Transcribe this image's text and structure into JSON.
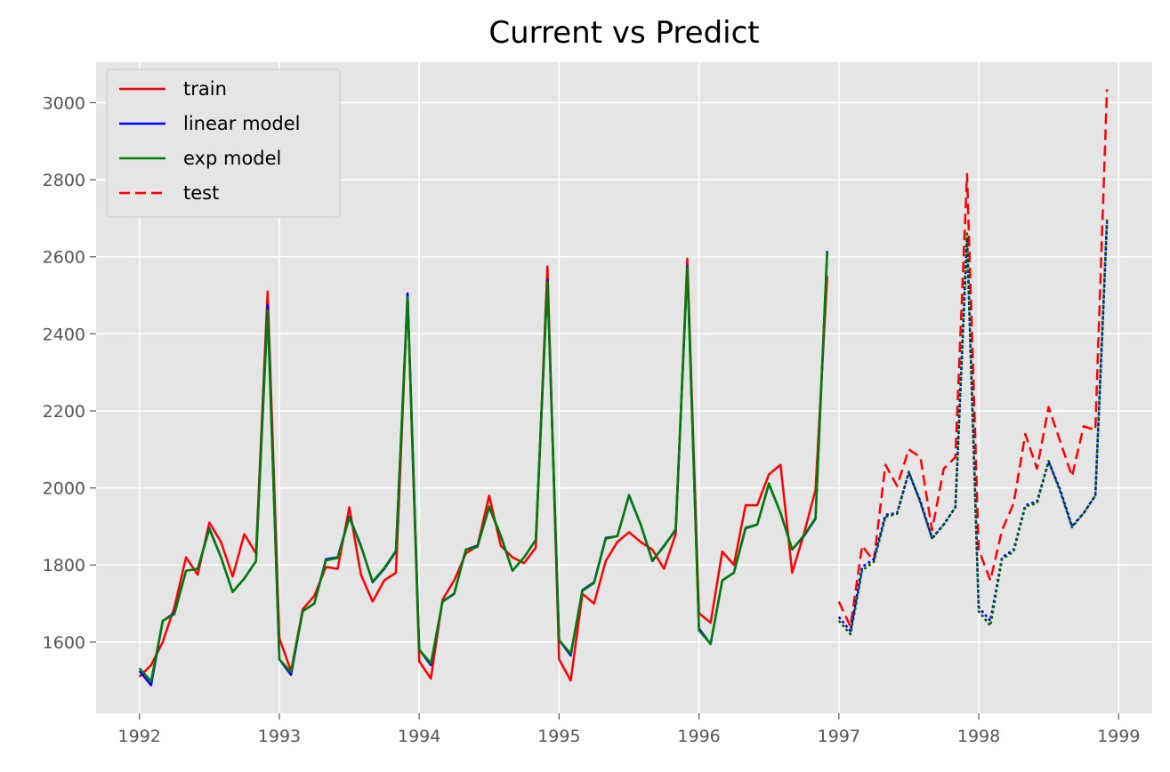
{
  "chart_data": {
    "type": "line",
    "title": "Current vs Predict",
    "xlabel": "",
    "ylabel": "",
    "xlim": [
      1991.69,
      1999.24
    ],
    "ylim": [
      1415,
      3105
    ],
    "xticks": [
      1992,
      1993,
      1994,
      1995,
      1996,
      1997,
      1998,
      1999
    ],
    "yticks": [
      1600,
      1800,
      2000,
      2200,
      2400,
      2600,
      2800,
      3000
    ],
    "grid": true,
    "legend_position": "top-left",
    "legend": [
      {
        "label": "train",
        "color": "#ff0000",
        "style": "solid"
      },
      {
        "label": "linear model",
        "color": "#0000ff",
        "style": "solid"
      },
      {
        "label": "exp model",
        "color": "#008000",
        "style": "solid"
      },
      {
        "label": "test",
        "color": "#ff0000",
        "style": "dashed"
      }
    ],
    "train_x_start": 1992.0,
    "test_x_start": 1997.0,
    "step": 0.08333,
    "series": [
      {
        "key": "train",
        "color": "#ff0000",
        "style": "solid",
        "values": [
          1510,
          1540,
          1600,
          1690,
          1820,
          1775,
          1910,
          1860,
          1770,
          1880,
          1830,
          2510,
          1610,
          1525,
          1685,
          1720,
          1795,
          1790,
          1950,
          1775,
          1705,
          1760,
          1780,
          2500,
          1550,
          1505,
          1710,
          1760,
          1830,
          1850,
          1980,
          1850,
          1820,
          1805,
          1845,
          2575,
          1555,
          1500,
          1725,
          1700,
          1810,
          1860,
          1885,
          1860,
          1840,
          1790,
          1880,
          2595,
          1675,
          1650,
          1835,
          1800,
          1955,
          1955,
          2035,
          2060,
          1780,
          1880,
          1995,
          2550
        ]
      },
      {
        "key": "linear",
        "color": "#0000ff",
        "style": "solid",
        "values": [
          1525,
          1488,
          1655,
          1675,
          1785,
          1790,
          1895,
          1820,
          1730,
          1765,
          1810,
          2475,
          1555,
          1515,
          1680,
          1700,
          1815,
          1820,
          1925,
          1850,
          1755,
          1790,
          1835,
          2505,
          1580,
          1540,
          1705,
          1725,
          1840,
          1850,
          1950,
          1875,
          1785,
          1820,
          1865,
          2540,
          1605,
          1565,
          1735,
          1755,
          1870,
          1875,
          1980,
          1905,
          1810,
          1850,
          1890,
          2575,
          1635,
          1595,
          1760,
          1780,
          1895,
          1905,
          2010,
          1935,
          1840,
          1875,
          1920,
          2615
        ]
      },
      {
        "key": "exp",
        "color": "#008000",
        "style": "solid",
        "values": [
          1532,
          1498,
          1655,
          1672,
          1785,
          1790,
          1893,
          1820,
          1730,
          1765,
          1810,
          2460,
          1555,
          1522,
          1680,
          1700,
          1812,
          1818,
          1923,
          1848,
          1757,
          1792,
          1837,
          2495,
          1580,
          1545,
          1706,
          1726,
          1840,
          1847,
          1952,
          1876,
          1785,
          1820,
          1865,
          2535,
          1605,
          1570,
          1733,
          1753,
          1868,
          1875,
          1982,
          1905,
          1812,
          1848,
          1893,
          2572,
          1630,
          1595,
          1760,
          1780,
          1897,
          1905,
          2012,
          1935,
          1840,
          1877,
          1922,
          2612
        ]
      },
      {
        "key": "test",
        "color": "#ff0000",
        "style": "dashed",
        "values": [
          1705,
          1640,
          1850,
          1810,
          2060,
          2005,
          2100,
          2080,
          1890,
          2050,
          2080,
          2815,
          1840,
          1760,
          1890,
          1960,
          2140,
          2050,
          2210,
          2120,
          2030,
          2160,
          2150,
          3035
        ]
      },
      {
        "key": "linear-forecast",
        "color": "#0000ff",
        "style": "dotted",
        "values": [
          1665,
          1628,
          1795,
          1815,
          1930,
          1935,
          2040,
          1965,
          1870,
          1905,
          1950,
          2650,
          1690,
          1655,
          1820,
          1840,
          1955,
          1965,
          2068,
          1995,
          1900,
          1935,
          1980,
          2690
        ]
      },
      {
        "key": "exp-forecast",
        "color": "#006400",
        "style": "dotted",
        "values": [
          1655,
          1620,
          1786,
          1808,
          1925,
          1933,
          2042,
          1962,
          1868,
          1905,
          1950,
          2660,
          1680,
          1642,
          1815,
          1835,
          1952,
          1960,
          2070,
          1990,
          1898,
          1935,
          1980,
          2700
        ]
      }
    ]
  }
}
